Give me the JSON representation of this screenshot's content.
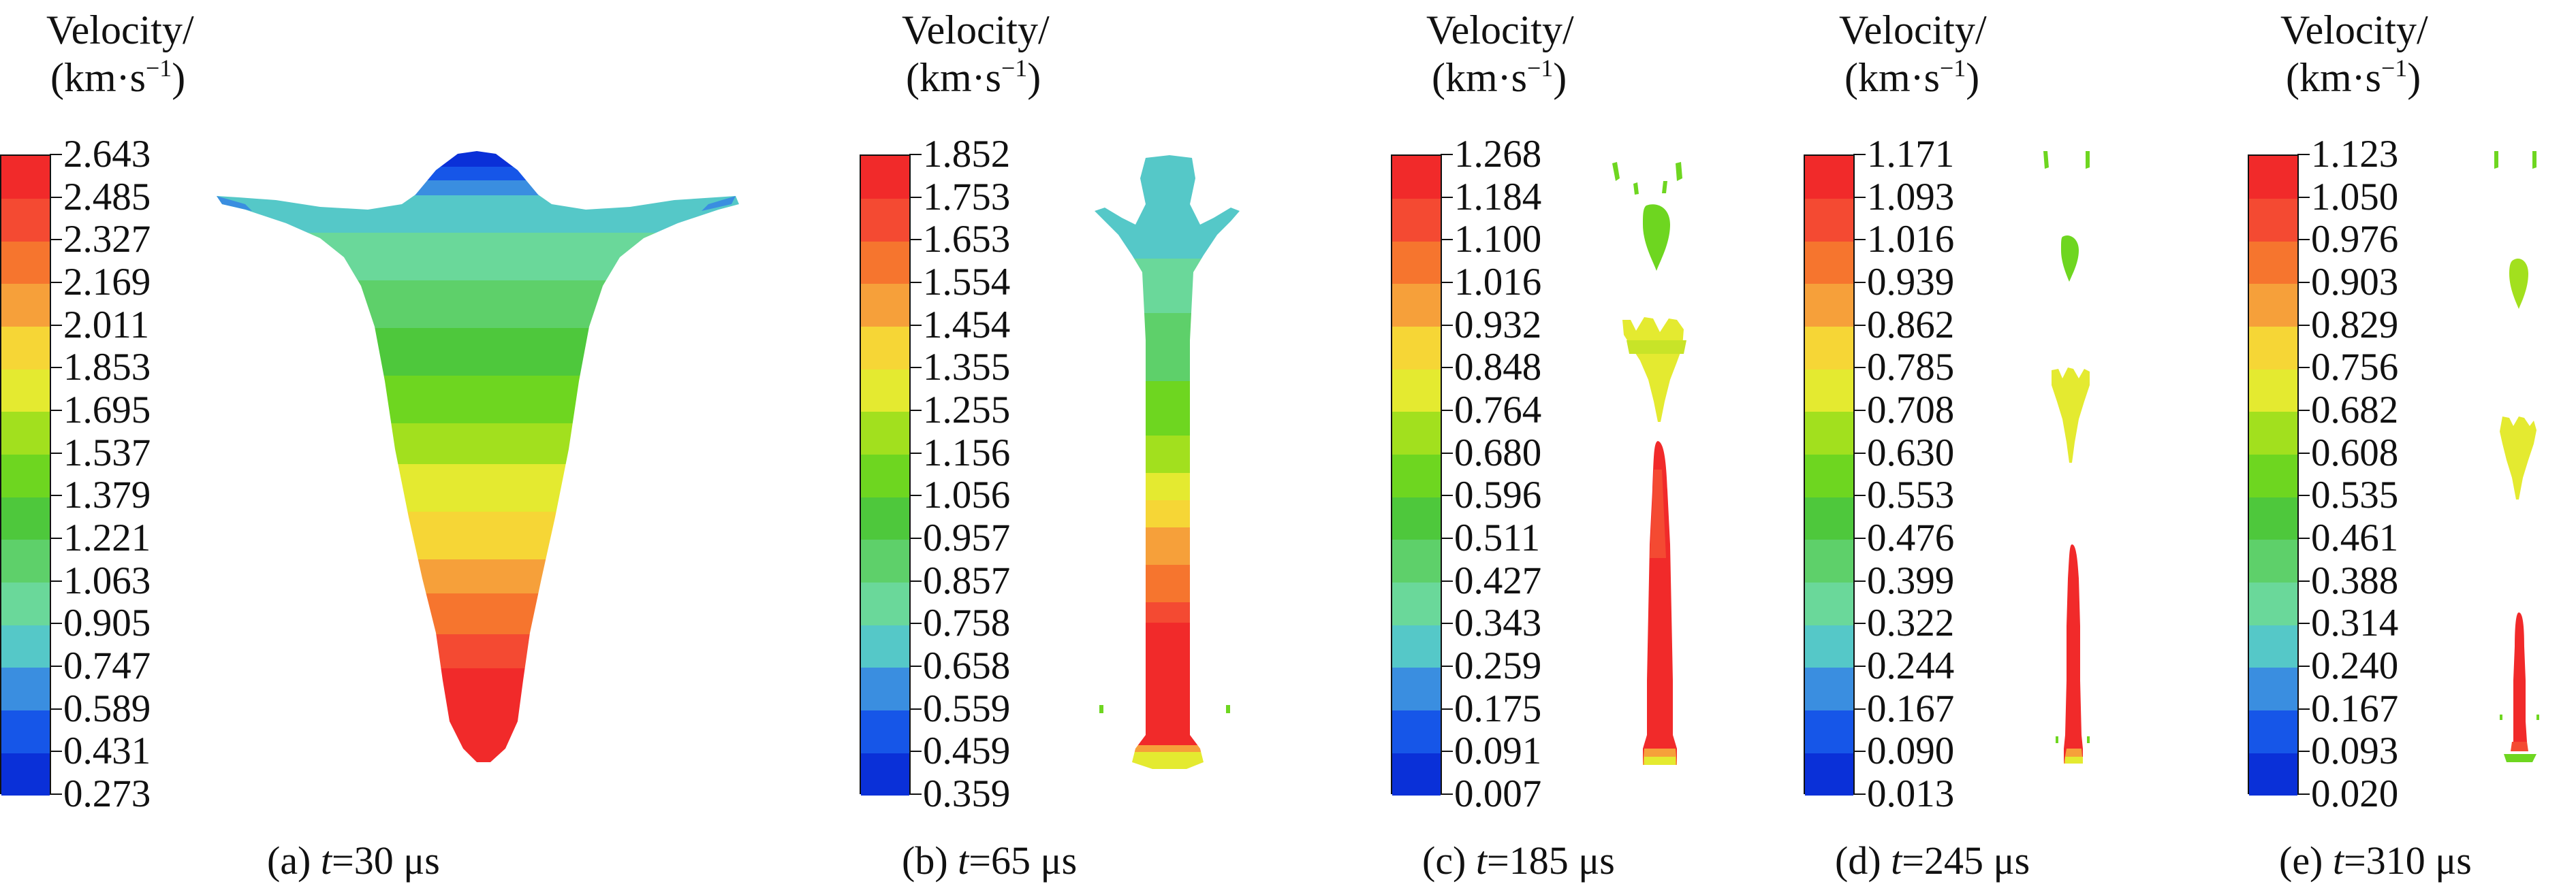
{
  "colors": [
    "#0a30d8",
    "#1656e8",
    "#3a8ee0",
    "#55c8c8",
    "#6ad89a",
    "#5ed06a",
    "#4ec83c",
    "#6ed620",
    "#a2e01e",
    "#e4ea30",
    "#f6d636",
    "#f6a03a",
    "#f6752e",
    "#f44a32",
    "#f12a2a"
  ],
  "panels": [
    {
      "title": "Velocity/",
      "unit": "(km·s",
      "unit_sup": "−1",
      "unit_close": ")",
      "ticks": [
        "2.643",
        "2.485",
        "2.327",
        "2.169",
        "2.011",
        "1.853",
        "1.695",
        "1.537",
        "1.379",
        "1.221",
        "1.063",
        "0.905",
        "0.747",
        "0.589",
        "0.431",
        "0.273"
      ],
      "caption_prefix": "(a) ",
      "caption_var": "t",
      "caption_rest": "=30 μs"
    },
    {
      "title": "Velocity/",
      "unit": "(km·s",
      "unit_sup": "−1",
      "unit_close": ")",
      "ticks": [
        "1.852",
        "1.753",
        "1.653",
        "1.554",
        "1.454",
        "1.355",
        "1.255",
        "1.156",
        "1.056",
        "0.957",
        "0.857",
        "0.758",
        "0.658",
        "0.559",
        "0.459",
        "0.359"
      ],
      "caption_prefix": "(b) ",
      "caption_var": "t",
      "caption_rest": "=65 μs"
    },
    {
      "title": "Velocity/",
      "unit": "(km·s",
      "unit_sup": "−1",
      "unit_close": ")",
      "ticks": [
        "1.268",
        "1.184",
        "1.100",
        "1.016",
        "0.932",
        "0.848",
        "0.764",
        "0.680",
        "0.596",
        "0.511",
        "0.427",
        "0.343",
        "0.259",
        "0.175",
        "0.091",
        "0.007"
      ],
      "caption_prefix": "(c) ",
      "caption_var": "t",
      "caption_rest": "=185 μs"
    },
    {
      "title": "Velocity/",
      "unit": "(km·s",
      "unit_sup": "−1",
      "unit_close": ")",
      "ticks": [
        "1.171",
        "1.093",
        "1.016",
        "0.939",
        "0.862",
        "0.785",
        "0.708",
        "0.630",
        "0.553",
        "0.476",
        "0.399",
        "0.322",
        "0.244",
        "0.167",
        "0.090",
        "0.013"
      ],
      "caption_prefix": "(d) ",
      "caption_var": "t",
      "caption_rest": "=245 μs"
    },
    {
      "title": "Velocity/",
      "unit": "(km·s",
      "unit_sup": "−1",
      "unit_close": ")",
      "ticks": [
        "1.123",
        "1.050",
        "0.976",
        "0.903",
        "0.829",
        "0.756",
        "0.682",
        "0.608",
        "0.535",
        "0.461",
        "0.388",
        "0.314",
        "0.240",
        "0.167",
        "0.093",
        "0.020"
      ],
      "caption_prefix": "(e) ",
      "caption_var": "t",
      "caption_rest": "=310 μs"
    }
  ]
}
